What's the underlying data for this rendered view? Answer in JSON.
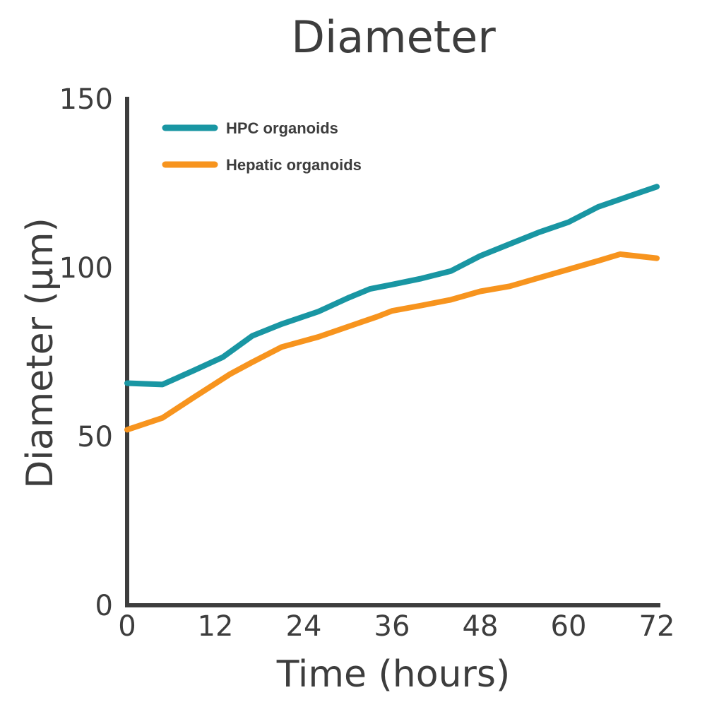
{
  "chart_data": {
    "type": "line",
    "title": "Diameter",
    "xlabel": "Time (hours)",
    "ylabel": "Diameter (μm)",
    "xlim": [
      0,
      72
    ],
    "ylim": [
      0,
      150
    ],
    "x_ticks": [
      "0",
      "12",
      "24",
      "36",
      "48",
      "60",
      "72"
    ],
    "y_ticks": [
      "0",
      "50",
      "100",
      "150"
    ],
    "grid": false,
    "legend_position": "top-left",
    "series": [
      {
        "name": "HPC organoids",
        "color": "#1996a3",
        "points": [
          [
            0,
            65.8
          ],
          [
            4.8,
            65.4
          ],
          [
            9,
            69.5
          ],
          [
            13,
            73.5
          ],
          [
            17,
            79.8
          ],
          [
            21,
            83.3
          ],
          [
            26,
            87
          ],
          [
            30,
            91
          ],
          [
            33,
            93.7
          ],
          [
            36,
            95
          ],
          [
            40,
            96.8
          ],
          [
            44,
            99
          ],
          [
            48,
            103.5
          ],
          [
            52,
            107
          ],
          [
            56,
            110.5
          ],
          [
            60,
            113.5
          ],
          [
            64,
            118
          ],
          [
            68,
            121
          ],
          [
            72,
            124
          ]
        ]
      },
      {
        "name": "Hepatic organoids",
        "color": "#f7941e",
        "points": [
          [
            0,
            52
          ],
          [
            4.8,
            55.5
          ],
          [
            9,
            61.5
          ],
          [
            14,
            68.5
          ],
          [
            17,
            72
          ],
          [
            21,
            76.5
          ],
          [
            26,
            79.5
          ],
          [
            30,
            82.5
          ],
          [
            34,
            85.5
          ],
          [
            36,
            87.2
          ],
          [
            40,
            88.8
          ],
          [
            44,
            90.5
          ],
          [
            48,
            93
          ],
          [
            52,
            94.5
          ],
          [
            56,
            97
          ],
          [
            60,
            99.5
          ],
          [
            64,
            102
          ],
          [
            67,
            104
          ],
          [
            72,
            102.8
          ]
        ]
      }
    ]
  }
}
